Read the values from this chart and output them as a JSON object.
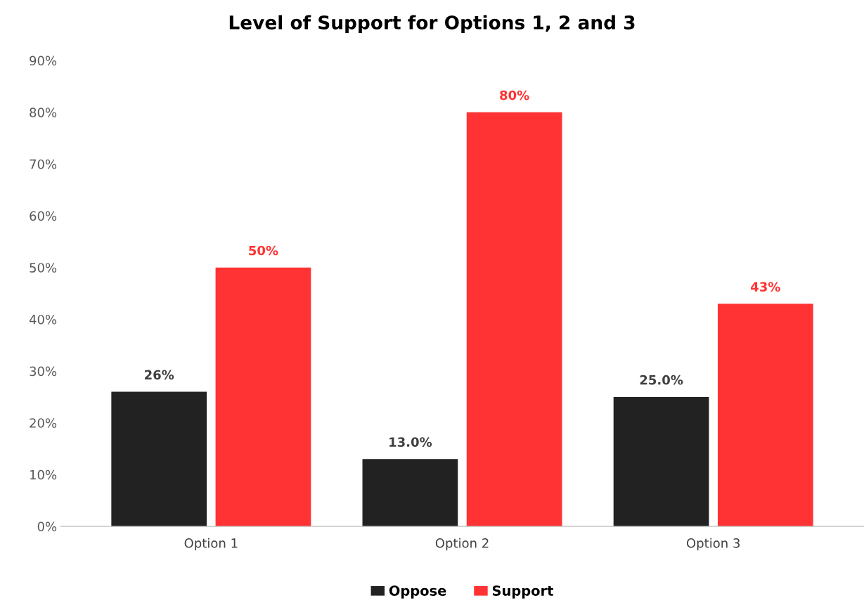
{
  "chart_data": {
    "type": "bar",
    "title": "Level of Support for Options 1, 2 and 3",
    "categories": [
      "Option 1",
      "Option 2",
      "Option 3"
    ],
    "series": [
      {
        "name": "Oppose",
        "color": "#222222",
        "values": [
          26,
          13,
          25
        ],
        "value_labels": [
          "26%",
          "13.0%",
          "25.0%"
        ]
      },
      {
        "name": "Support",
        "color": "#ff3333",
        "values": [
          50,
          80,
          43
        ],
        "value_labels": [
          "50%",
          "80%",
          "43%"
        ]
      }
    ],
    "ylim": [
      0,
      90
    ],
    "yticks": [
      {
        "value": 0,
        "label": "0%"
      },
      {
        "value": 10,
        "label": "10%"
      },
      {
        "value": 20,
        "label": "20%"
      },
      {
        "value": 30,
        "label": "30%"
      },
      {
        "value": 40,
        "label": "40%"
      },
      {
        "value": 50,
        "label": "50%"
      },
      {
        "value": 60,
        "label": "60%"
      },
      {
        "value": 70,
        "label": "70%"
      },
      {
        "value": 80,
        "label": "80%"
      },
      {
        "value": 90,
        "label": "90%"
      }
    ],
    "grid": false,
    "legend": "bottom"
  }
}
